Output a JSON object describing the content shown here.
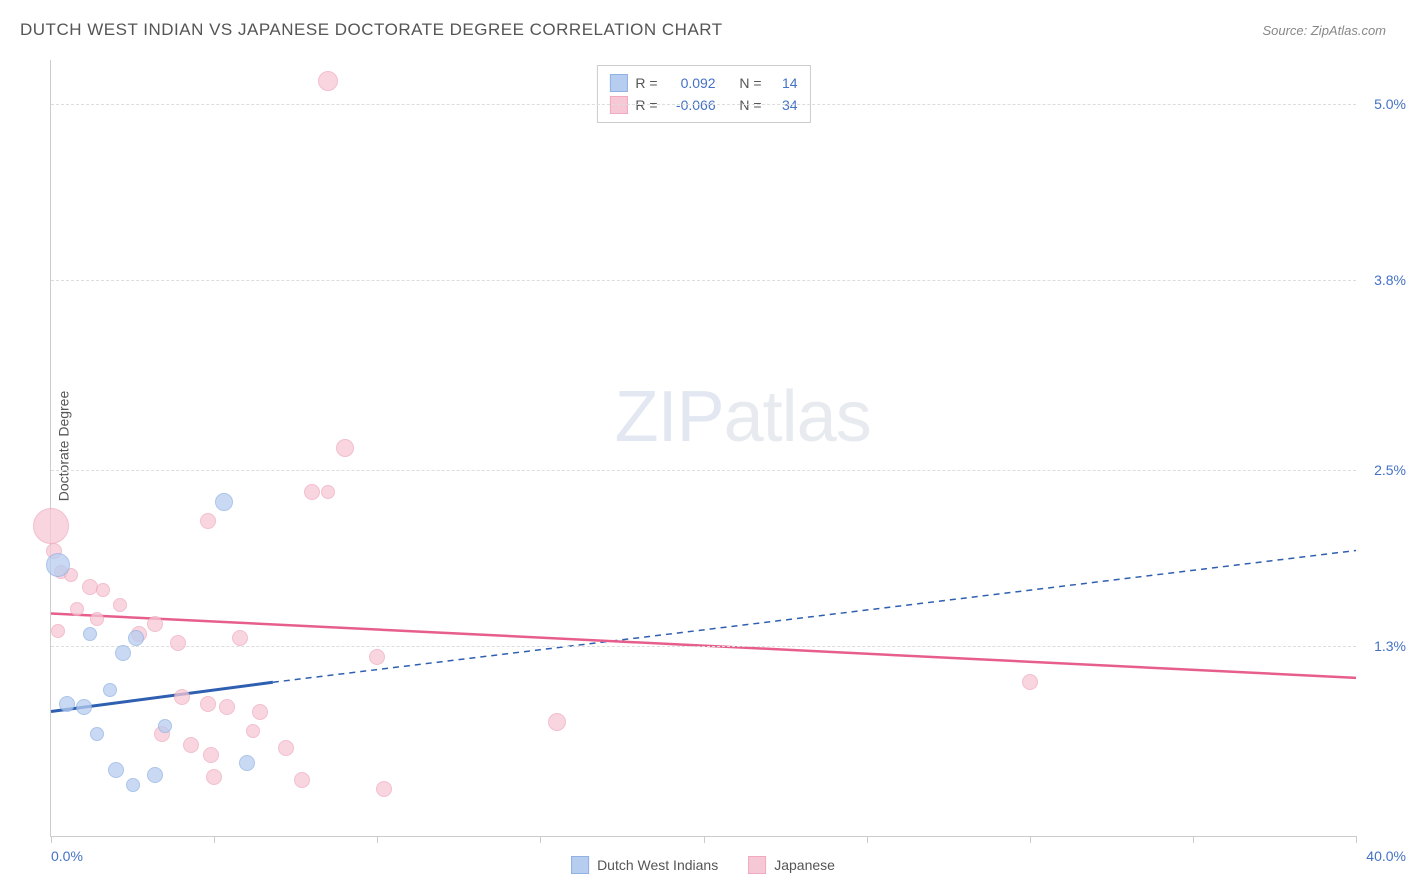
{
  "title": "DUTCH WEST INDIAN VS JAPANESE DOCTORATE DEGREE CORRELATION CHART",
  "source": "Source: ZipAtlas.com",
  "y_axis_label": "Doctorate Degree",
  "watermark": {
    "bold": "ZIP",
    "light": "atlas"
  },
  "colors": {
    "series_a_fill": "#b7cdf0",
    "series_a_stroke": "#8fb1e3",
    "series_b_fill": "#f6c7d5",
    "series_b_stroke": "#efaabf",
    "trend_a": "#2e5fb0",
    "trend_b": "#e75e8d",
    "axis_text": "#4472c4",
    "grid": "#dddddd",
    "border": "#cccccc"
  },
  "xlim": [
    0,
    40
  ],
  "ylim": [
    0,
    5.3
  ],
  "x_ticks": [
    0,
    5,
    10,
    15,
    20,
    25,
    30,
    35,
    40
  ],
  "x_tick_labels": {
    "min": "0.0%",
    "max": "40.0%"
  },
  "y_gridlines": [
    {
      "v": 1.3,
      "label": "1.3%"
    },
    {
      "v": 2.5,
      "label": "2.5%"
    },
    {
      "v": 3.8,
      "label": "3.8%"
    },
    {
      "v": 5.0,
      "label": "5.0%"
    }
  ],
  "stats": [
    {
      "series": "a",
      "r_label": "R =",
      "r": "0.092",
      "n_label": "N =",
      "n": "14"
    },
    {
      "series": "b",
      "r_label": "R =",
      "r": "-0.066",
      "n_label": "N =",
      "n": "34"
    }
  ],
  "legend": [
    {
      "series": "a",
      "label": "Dutch West Indians"
    },
    {
      "series": "b",
      "label": "Japanese"
    }
  ],
  "trend_lines": {
    "a": {
      "x1": 0,
      "y1": 0.85,
      "x2": 6.8,
      "y2": 1.05,
      "dash_x2": 40,
      "dash_y2": 1.95
    },
    "b": {
      "x1": 0,
      "y1": 1.52,
      "x2": 40,
      "y2": 1.08
    }
  },
  "points_a": [
    {
      "x": 0.2,
      "y": 1.85,
      "r": 12
    },
    {
      "x": 5.3,
      "y": 2.28,
      "r": 9
    },
    {
      "x": 2.2,
      "y": 1.25,
      "r": 8
    },
    {
      "x": 2.6,
      "y": 1.35,
      "r": 8
    },
    {
      "x": 0.5,
      "y": 0.9,
      "r": 8
    },
    {
      "x": 1.0,
      "y": 0.88,
      "r": 8
    },
    {
      "x": 1.2,
      "y": 1.38,
      "r": 7
    },
    {
      "x": 2.0,
      "y": 0.45,
      "r": 8
    },
    {
      "x": 2.5,
      "y": 0.35,
      "r": 7
    },
    {
      "x": 3.2,
      "y": 0.42,
      "r": 8
    },
    {
      "x": 3.5,
      "y": 0.75,
      "r": 7
    },
    {
      "x": 1.4,
      "y": 0.7,
      "r": 7
    },
    {
      "x": 6.0,
      "y": 0.5,
      "r": 8
    },
    {
      "x": 1.8,
      "y": 1.0,
      "r": 7
    }
  ],
  "points_b": [
    {
      "x": 0.0,
      "y": 2.12,
      "r": 18
    },
    {
      "x": 8.5,
      "y": 5.16,
      "r": 10
    },
    {
      "x": 9.0,
      "y": 2.65,
      "r": 9
    },
    {
      "x": 8.0,
      "y": 2.35,
      "r": 8
    },
    {
      "x": 8.5,
      "y": 2.35,
      "r": 7
    },
    {
      "x": 4.8,
      "y": 2.15,
      "r": 8
    },
    {
      "x": 0.1,
      "y": 1.95,
      "r": 8
    },
    {
      "x": 0.3,
      "y": 1.8,
      "r": 7
    },
    {
      "x": 0.6,
      "y": 1.78,
      "r": 7
    },
    {
      "x": 1.2,
      "y": 1.7,
      "r": 8
    },
    {
      "x": 1.6,
      "y": 1.68,
      "r": 7
    },
    {
      "x": 0.8,
      "y": 1.55,
      "r": 7
    },
    {
      "x": 0.2,
      "y": 1.4,
      "r": 7
    },
    {
      "x": 3.2,
      "y": 1.45,
      "r": 8
    },
    {
      "x": 2.7,
      "y": 1.38,
      "r": 8
    },
    {
      "x": 3.9,
      "y": 1.32,
      "r": 8
    },
    {
      "x": 5.8,
      "y": 1.35,
      "r": 8
    },
    {
      "x": 10.0,
      "y": 1.22,
      "r": 8
    },
    {
      "x": 30.0,
      "y": 1.05,
      "r": 8
    },
    {
      "x": 15.5,
      "y": 0.78,
      "r": 9
    },
    {
      "x": 4.0,
      "y": 0.95,
      "r": 8
    },
    {
      "x": 4.8,
      "y": 0.9,
      "r": 8
    },
    {
      "x": 5.4,
      "y": 0.88,
      "r": 8
    },
    {
      "x": 6.4,
      "y": 0.85,
      "r": 8
    },
    {
      "x": 3.4,
      "y": 0.7,
      "r": 8
    },
    {
      "x": 4.3,
      "y": 0.62,
      "r": 8
    },
    {
      "x": 4.9,
      "y": 0.55,
      "r": 8
    },
    {
      "x": 7.2,
      "y": 0.6,
      "r": 8
    },
    {
      "x": 2.1,
      "y": 1.58,
      "r": 7
    },
    {
      "x": 5.0,
      "y": 0.4,
      "r": 8
    },
    {
      "x": 7.7,
      "y": 0.38,
      "r": 8
    },
    {
      "x": 10.2,
      "y": 0.32,
      "r": 8
    },
    {
      "x": 6.2,
      "y": 0.72,
      "r": 7
    },
    {
      "x": 1.4,
      "y": 1.48,
      "r": 7
    }
  ]
}
